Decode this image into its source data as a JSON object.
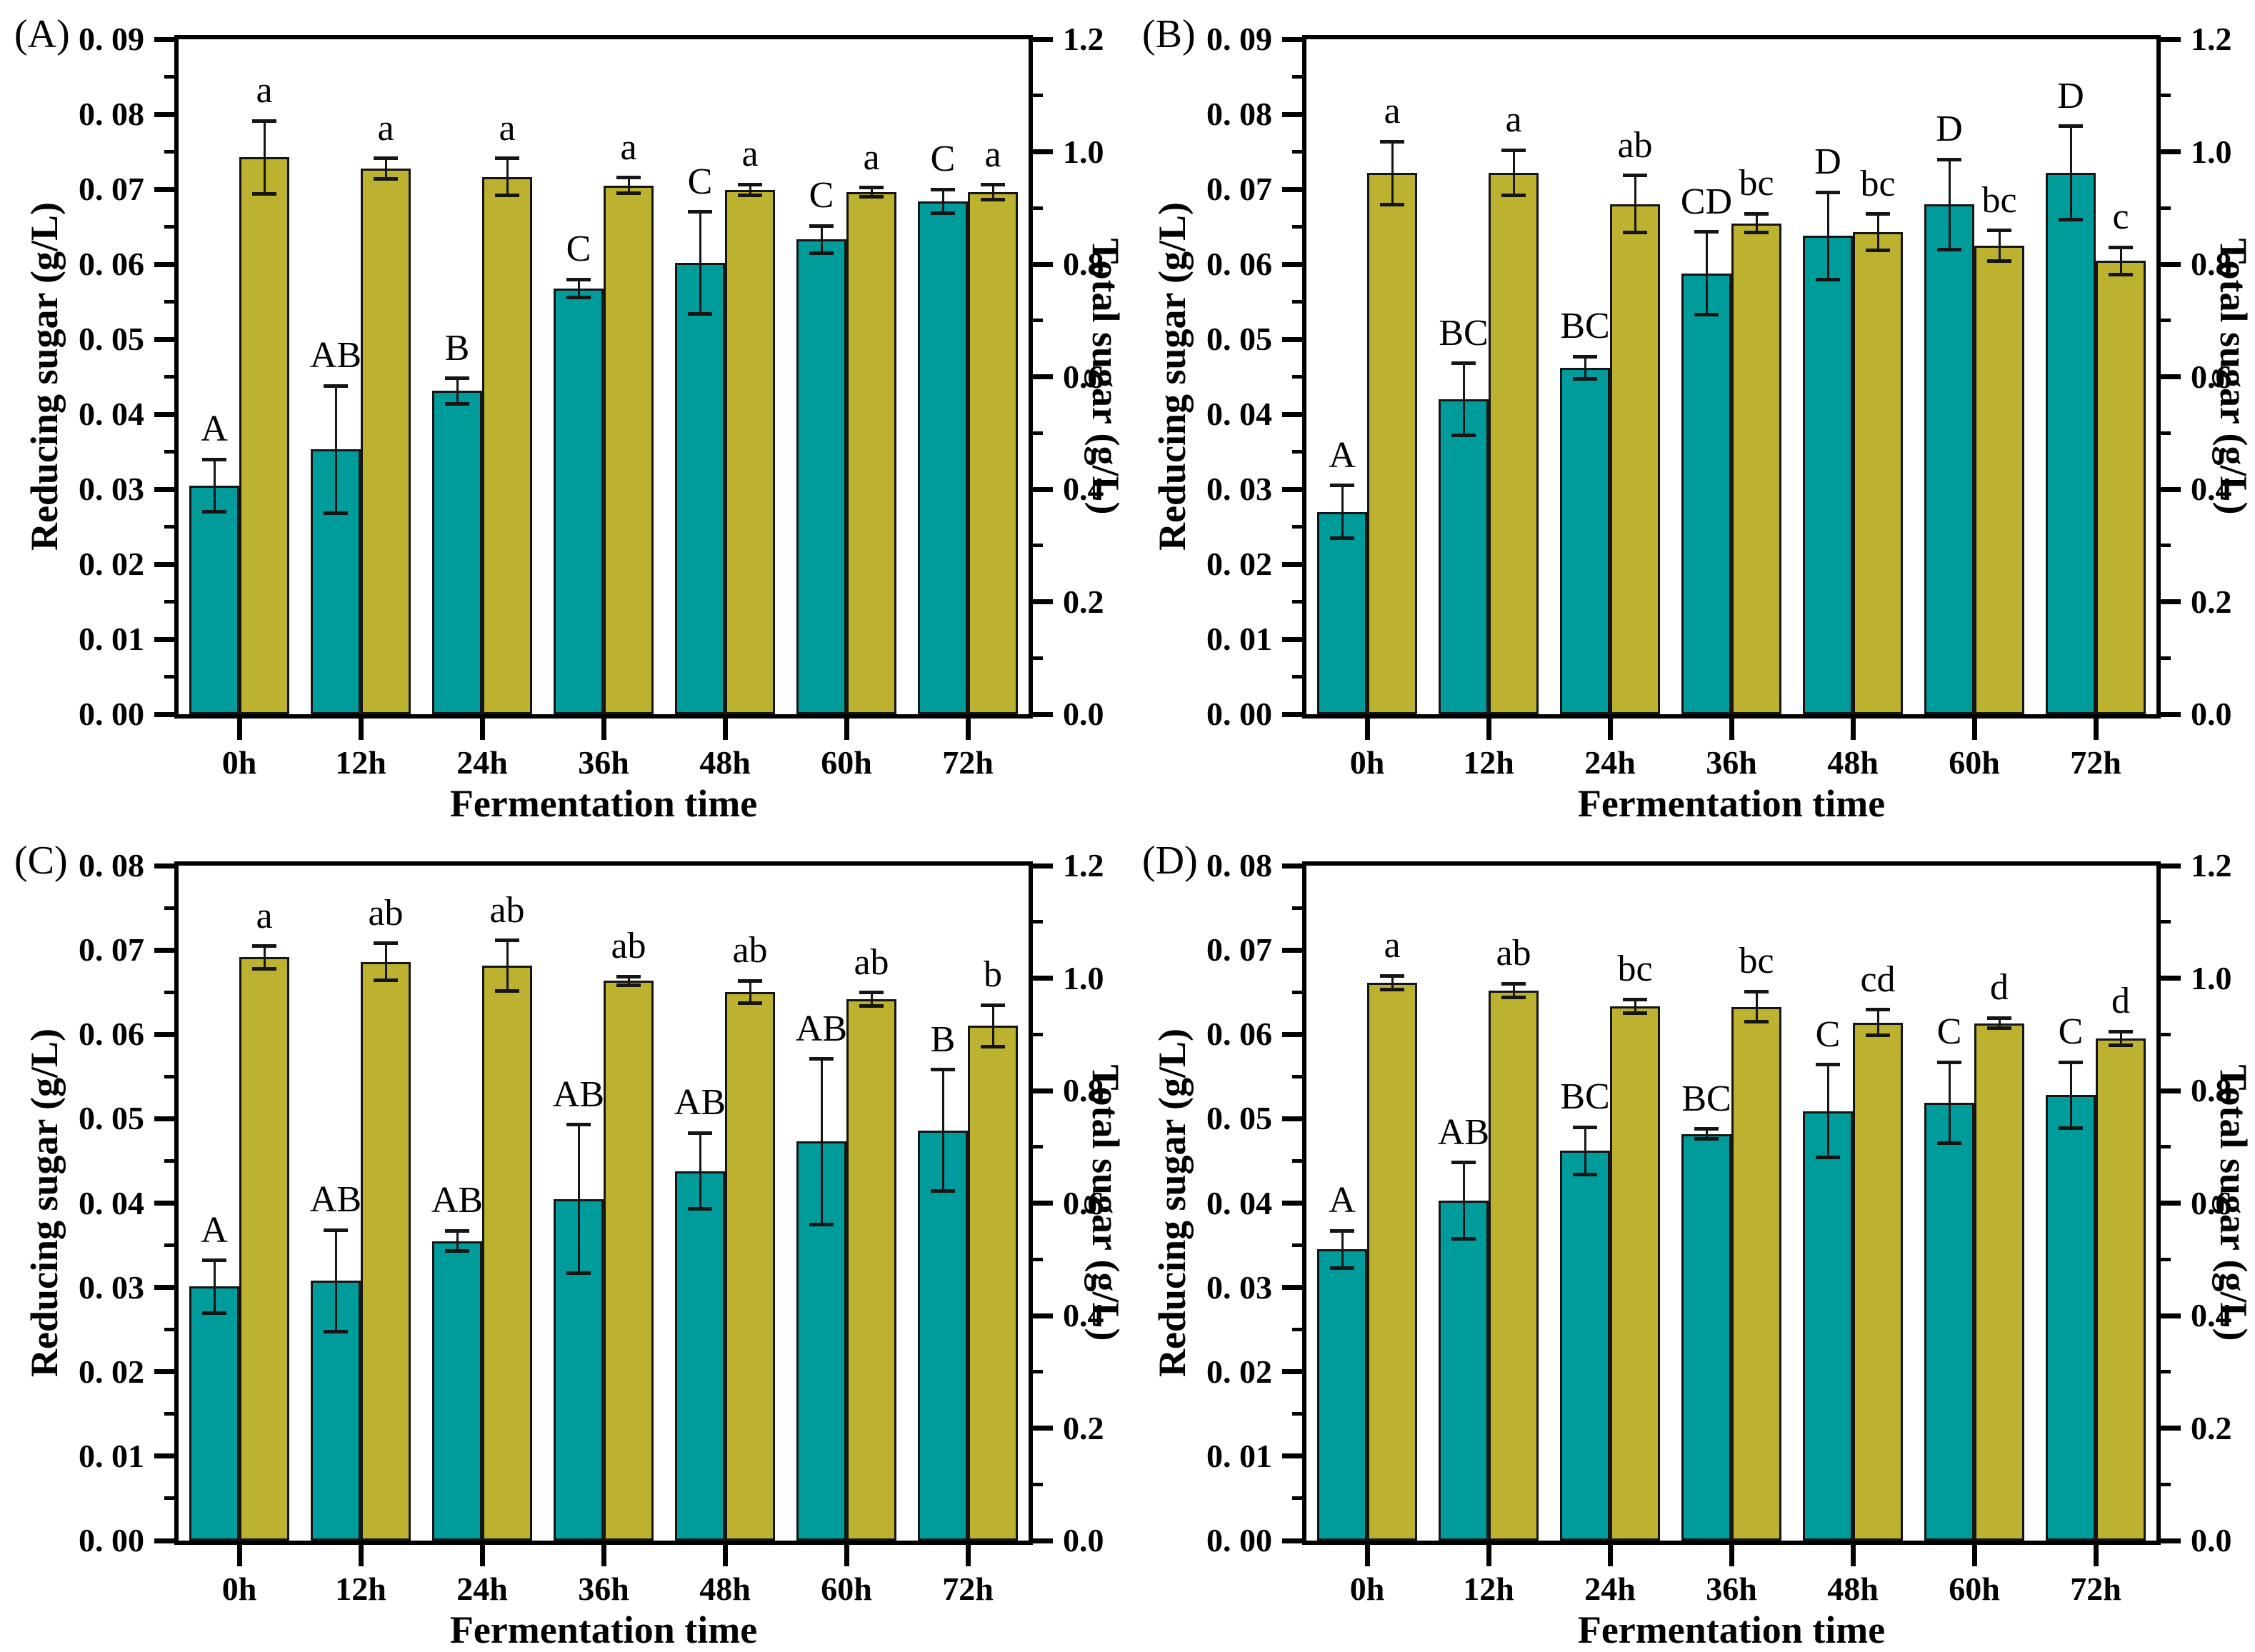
{
  "colors": {
    "reducing_bar": "#009b9b",
    "total_bar": "#bcb22f",
    "bar_outline": "#151515",
    "error_bar": "#151515",
    "axis": "#000000",
    "text": "#000000",
    "background": "#ffffff"
  },
  "chart_data": [
    {
      "panel": "(A)",
      "type": "bar",
      "categories": [
        "0h",
        "12h",
        "24h",
        "36h",
        "48h",
        "60h",
        "72h"
      ],
      "x_axis_title": "Fermentation time",
      "left_axis_title": "Reducing sugar (g/L)",
      "right_axis_title": "Total sugar (g/L)",
      "left_ylim": [
        0,
        0.09
      ],
      "right_ylim": [
        0,
        1.2
      ],
      "left_tick_labels": [
        "0. 00",
        "0. 01",
        "0. 02",
        "0. 03",
        "0. 04",
        "0. 05",
        "0. 06",
        "0. 07",
        "0. 08",
        "0. 09"
      ],
      "right_tick_labels": [
        "0.0",
        "0.2",
        "0.4",
        "0.6",
        "0.8",
        "1.0",
        "1.2"
      ],
      "legend_position": "none",
      "grid": false,
      "series": [
        {
          "name": "Reducing sugar (g/L)",
          "axis": "left",
          "color": "reducing_bar",
          "values": [
            0.0305,
            0.0353,
            0.0431,
            0.0568,
            0.0602,
            0.0633,
            0.0684
          ],
          "errors": [
            0.0035,
            0.0085,
            0.0017,
            0.0012,
            0.0068,
            0.0018,
            0.0016
          ],
          "letters": [
            "A",
            "AB",
            "B",
            "C",
            "C",
            "C",
            "C"
          ]
        },
        {
          "name": "Total sugar (g/L)",
          "axis": "right",
          "color": "total_bar",
          "values": [
            0.99,
            0.97,
            0.955,
            0.94,
            0.932,
            0.928,
            0.928
          ],
          "errors": [
            0.065,
            0.018,
            0.033,
            0.014,
            0.01,
            0.008,
            0.013
          ],
          "letters": [
            "a",
            "a",
            "a",
            "a",
            "a",
            "a",
            "a"
          ]
        }
      ]
    },
    {
      "panel": "(B)",
      "type": "bar",
      "categories": [
        "0h",
        "12h",
        "24h",
        "36h",
        "48h",
        "60h",
        "72h"
      ],
      "x_axis_title": "Fermentation time",
      "left_axis_title": "Reducing sugar (g/L)",
      "right_axis_title": "Total sugar (g/L)",
      "left_ylim": [
        0,
        0.09
      ],
      "right_ylim": [
        0,
        1.2
      ],
      "left_tick_labels": [
        "0. 00",
        "0. 01",
        "0. 02",
        "0. 03",
        "0. 04",
        "0. 05",
        "0. 06",
        "0. 07",
        "0. 08",
        "0. 09"
      ],
      "right_tick_labels": [
        "0.0",
        "0.2",
        "0.4",
        "0.6",
        "0.8",
        "1.0",
        "1.2"
      ],
      "legend_position": "none",
      "grid": false,
      "series": [
        {
          "name": "Reducing sugar (g/L)",
          "axis": "left",
          "color": "reducing_bar",
          "values": [
            0.027,
            0.042,
            0.0462,
            0.0588,
            0.0638,
            0.068,
            0.0722
          ],
          "errors": [
            0.0035,
            0.0048,
            0.0015,
            0.0055,
            0.0058,
            0.006,
            0.0062
          ],
          "letters": [
            "A",
            "BC",
            "BC",
            "CD",
            "D",
            "D",
            "D"
          ]
        },
        {
          "name": "Total sugar (g/L)",
          "axis": "right",
          "color": "total_bar",
          "values": [
            0.962,
            0.963,
            0.907,
            0.873,
            0.857,
            0.833,
            0.806
          ],
          "errors": [
            0.056,
            0.04,
            0.051,
            0.017,
            0.032,
            0.027,
            0.024
          ],
          "letters": [
            "a",
            "a",
            "ab",
            "bc",
            "bc",
            "bc",
            "c"
          ]
        }
      ]
    },
    {
      "panel": "(C)",
      "type": "bar",
      "categories": [
        "0h",
        "12h",
        "24h",
        "36h",
        "48h",
        "60h",
        "72h"
      ],
      "x_axis_title": "Fermentation time",
      "left_axis_title": "Reducing sugar (g/L)",
      "right_axis_title": "Total sugar (g/L)",
      "left_ylim": [
        0,
        0.08
      ],
      "right_ylim": [
        0,
        1.2
      ],
      "left_tick_labels": [
        "0. 00",
        "0. 01",
        "0. 02",
        "0. 03",
        "0. 04",
        "0. 05",
        "0. 06",
        "0. 07",
        "0. 08"
      ],
      "right_tick_labels": [
        "0.0",
        "0.2",
        "0.4",
        "0.6",
        "0.8",
        "1.0",
        "1.2"
      ],
      "legend_position": "none",
      "grid": false,
      "series": [
        {
          "name": "Reducing sugar (g/L)",
          "axis": "left",
          "color": "reducing_bar",
          "values": [
            0.0301,
            0.0308,
            0.0355,
            0.0405,
            0.0438,
            0.0473,
            0.0486
          ],
          "errors": [
            0.0031,
            0.006,
            0.0012,
            0.0088,
            0.0045,
            0.0098,
            0.0072
          ],
          "letters": [
            "A",
            "AB",
            "AB",
            "AB",
            "AB",
            "AB",
            "B"
          ]
        },
        {
          "name": "Total sugar (g/L)",
          "axis": "right",
          "color": "total_bar",
          "values": [
            1.037,
            1.029,
            1.022,
            0.995,
            0.975,
            0.962,
            0.915
          ],
          "errors": [
            0.02,
            0.033,
            0.045,
            0.008,
            0.02,
            0.012,
            0.037
          ],
          "letters": [
            "a",
            "ab",
            "ab",
            "ab",
            "ab",
            "ab",
            "b"
          ]
        }
      ]
    },
    {
      "panel": "(D)",
      "type": "bar",
      "categories": [
        "0h",
        "12h",
        "24h",
        "36h",
        "48h",
        "60h",
        "72h"
      ],
      "x_axis_title": "Fermentation time",
      "left_axis_title": "Reducing sugar (g/L)",
      "right_axis_title": "Total sugar (g/L)",
      "left_ylim": [
        0,
        0.08
      ],
      "right_ylim": [
        0,
        1.2
      ],
      "left_tick_labels": [
        "0. 00",
        "0. 01",
        "0. 02",
        "0. 03",
        "0. 04",
        "0. 05",
        "0. 06",
        "0. 07",
        "0. 08"
      ],
      "right_tick_labels": [
        "0.0",
        "0.2",
        "0.4",
        "0.6",
        "0.8",
        "1.0",
        "1.2"
      ],
      "legend_position": "none",
      "grid": false,
      "series": [
        {
          "name": "Reducing sugar (g/L)",
          "axis": "left",
          "color": "reducing_bar",
          "values": [
            0.0345,
            0.0403,
            0.0462,
            0.0482,
            0.0509,
            0.0519,
            0.0528
          ],
          "errors": [
            0.0022,
            0.0045,
            0.0028,
            0.0006,
            0.0055,
            0.0048,
            0.0039
          ],
          "letters": [
            "A",
            "AB",
            "BC",
            "BC",
            "C",
            "C",
            "C"
          ]
        },
        {
          "name": "Total sugar (g/L)",
          "axis": "right",
          "color": "total_bar",
          "values": [
            0.992,
            0.978,
            0.95,
            0.949,
            0.921,
            0.92,
            0.893
          ],
          "errors": [
            0.012,
            0.012,
            0.012,
            0.027,
            0.023,
            0.009,
            0.012
          ],
          "letters": [
            "a",
            "ab",
            "bc",
            "bc",
            "cd",
            "d",
            "d"
          ]
        }
      ]
    }
  ]
}
